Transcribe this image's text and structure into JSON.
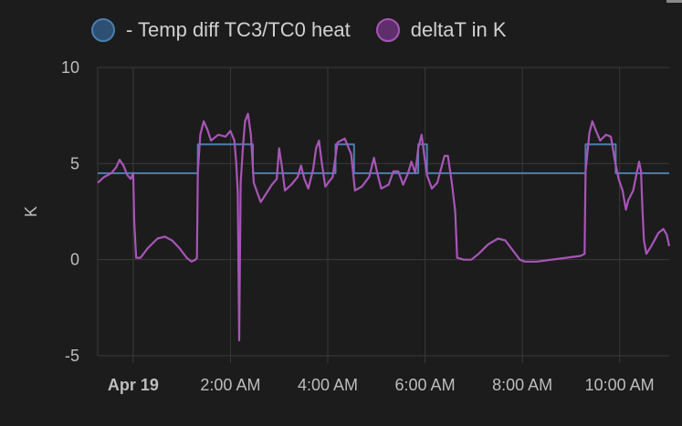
{
  "chart_data": {
    "type": "line",
    "ylabel": "K",
    "ylim": [
      -5,
      10
    ],
    "yticks": [
      "10",
      "5",
      "0",
      "-5"
    ],
    "ytick_values": [
      10,
      5,
      0,
      -5
    ],
    "xticks": [
      {
        "label": "Apr 19",
        "hour": 0,
        "bold": true
      },
      {
        "label": "2:00 AM",
        "hour": 2,
        "bold": false
      },
      {
        "label": "4:00 AM",
        "hour": 4,
        "bold": false
      },
      {
        "label": "6:00 AM",
        "hour": 6,
        "bold": false
      },
      {
        "label": "8:00 AM",
        "hour": 8,
        "bold": false
      },
      {
        "label": "10:00 AM",
        "hour": 10,
        "bold": false
      }
    ],
    "xlim_hours": [
      -0.73,
      11.02
    ],
    "legend": [
      {
        "name": "- Temp diff TC3/TC0 heat",
        "color": "#4a7fb0",
        "fill": "#2d4f72"
      },
      {
        "name": "deltaT in K",
        "color": "#a855b8",
        "fill": "#5e2f6a"
      }
    ],
    "series": [
      {
        "name": "- Temp diff TC3/TC0 heat",
        "color": "#4a7fb0",
        "step": true,
        "points": [
          [
            -0.73,
            4.5
          ],
          [
            1.33,
            4.5
          ],
          [
            1.33,
            6.0
          ],
          [
            2.46,
            6.0
          ],
          [
            2.46,
            4.5
          ],
          [
            4.16,
            4.5
          ],
          [
            4.16,
            6.0
          ],
          [
            4.54,
            6.0
          ],
          [
            4.54,
            4.5
          ],
          [
            5.86,
            4.5
          ],
          [
            5.86,
            6.0
          ],
          [
            6.04,
            6.0
          ],
          [
            6.04,
            4.5
          ],
          [
            9.3,
            4.5
          ],
          [
            9.3,
            6.0
          ],
          [
            9.92,
            6.0
          ],
          [
            9.92,
            4.5
          ],
          [
            11.02,
            4.5
          ]
        ]
      },
      {
        "name": "deltaT in K",
        "color": "#a855b8",
        "points": [
          [
            -0.73,
            4.0
          ],
          [
            -0.6,
            4.3
          ],
          [
            -0.45,
            4.5
          ],
          [
            -0.35,
            4.8
          ],
          [
            -0.28,
            5.2
          ],
          [
            -0.2,
            4.9
          ],
          [
            -0.12,
            4.4
          ],
          [
            -0.05,
            4.2
          ],
          [
            0.0,
            4.5
          ],
          [
            0.02,
            2.0
          ],
          [
            0.06,
            0.1
          ],
          [
            0.15,
            0.1
          ],
          [
            0.3,
            0.6
          ],
          [
            0.5,
            1.1
          ],
          [
            0.65,
            1.2
          ],
          [
            0.8,
            1.0
          ],
          [
            0.95,
            0.6
          ],
          [
            1.1,
            0.1
          ],
          [
            1.2,
            -0.1
          ],
          [
            1.28,
            0.0
          ],
          [
            1.31,
            0.1
          ],
          [
            1.33,
            4.6
          ],
          [
            1.38,
            6.5
          ],
          [
            1.45,
            7.2
          ],
          [
            1.52,
            6.8
          ],
          [
            1.6,
            6.2
          ],
          [
            1.75,
            6.5
          ],
          [
            1.9,
            6.4
          ],
          [
            2.0,
            6.7
          ],
          [
            2.08,
            6.2
          ],
          [
            2.12,
            5.0
          ],
          [
            2.15,
            3.5
          ],
          [
            2.18,
            -4.2
          ],
          [
            2.21,
            4.0
          ],
          [
            2.26,
            6.0
          ],
          [
            2.3,
            7.2
          ],
          [
            2.36,
            7.6
          ],
          [
            2.42,
            6.5
          ],
          [
            2.48,
            4.0
          ],
          [
            2.55,
            3.5
          ],
          [
            2.62,
            3.0
          ],
          [
            2.7,
            3.3
          ],
          [
            2.85,
            3.9
          ],
          [
            2.95,
            4.2
          ],
          [
            3.0,
            5.8
          ],
          [
            3.06,
            4.8
          ],
          [
            3.12,
            3.6
          ],
          [
            3.25,
            3.9
          ],
          [
            3.38,
            4.3
          ],
          [
            3.45,
            4.9
          ],
          [
            3.52,
            4.2
          ],
          [
            3.6,
            3.7
          ],
          [
            3.7,
            4.7
          ],
          [
            3.76,
            5.8
          ],
          [
            3.82,
            6.2
          ],
          [
            3.88,
            5.0
          ],
          [
            3.95,
            3.8
          ],
          [
            4.1,
            4.3
          ],
          [
            4.2,
            6.1
          ],
          [
            4.35,
            6.3
          ],
          [
            4.48,
            5.5
          ],
          [
            4.56,
            3.6
          ],
          [
            4.7,
            3.8
          ],
          [
            4.85,
            4.3
          ],
          [
            4.95,
            5.3
          ],
          [
            5.02,
            4.5
          ],
          [
            5.1,
            3.7
          ],
          [
            5.25,
            3.9
          ],
          [
            5.35,
            4.6
          ],
          [
            5.45,
            4.6
          ],
          [
            5.55,
            3.9
          ],
          [
            5.65,
            4.5
          ],
          [
            5.72,
            5.1
          ],
          [
            5.8,
            4.5
          ],
          [
            5.86,
            5.8
          ],
          [
            5.93,
            6.5
          ],
          [
            5.98,
            5.5
          ],
          [
            6.04,
            4.4
          ],
          [
            6.14,
            3.7
          ],
          [
            6.25,
            4.0
          ],
          [
            6.4,
            5.4
          ],
          [
            6.47,
            5.4
          ],
          [
            6.55,
            4.0
          ],
          [
            6.62,
            2.5
          ],
          [
            6.66,
            0.1
          ],
          [
            6.8,
            0.0
          ],
          [
            6.95,
            0.0
          ],
          [
            7.1,
            0.3
          ],
          [
            7.3,
            0.8
          ],
          [
            7.5,
            1.1
          ],
          [
            7.65,
            1.0
          ],
          [
            7.8,
            0.5
          ],
          [
            7.95,
            0.0
          ],
          [
            8.05,
            -0.1
          ],
          [
            8.3,
            -0.1
          ],
          [
            8.6,
            0.0
          ],
          [
            8.9,
            0.1
          ],
          [
            9.2,
            0.2
          ],
          [
            9.28,
            0.3
          ],
          [
            9.3,
            4.6
          ],
          [
            9.38,
            6.6
          ],
          [
            9.44,
            7.2
          ],
          [
            9.5,
            6.8
          ],
          [
            9.6,
            6.2
          ],
          [
            9.72,
            6.5
          ],
          [
            9.82,
            6.4
          ],
          [
            9.9,
            5.2
          ],
          [
            9.98,
            4.2
          ],
          [
            10.06,
            3.6
          ],
          [
            10.13,
            2.6
          ],
          [
            10.18,
            3.1
          ],
          [
            10.28,
            3.6
          ],
          [
            10.36,
            4.6
          ],
          [
            10.4,
            5.1
          ],
          [
            10.44,
            4.6
          ],
          [
            10.47,
            2.6
          ],
          [
            10.5,
            1.0
          ],
          [
            10.55,
            0.3
          ],
          [
            10.65,
            0.7
          ],
          [
            10.8,
            1.4
          ],
          [
            10.9,
            1.6
          ],
          [
            10.97,
            1.3
          ],
          [
            11.02,
            0.7
          ]
        ]
      }
    ]
  }
}
